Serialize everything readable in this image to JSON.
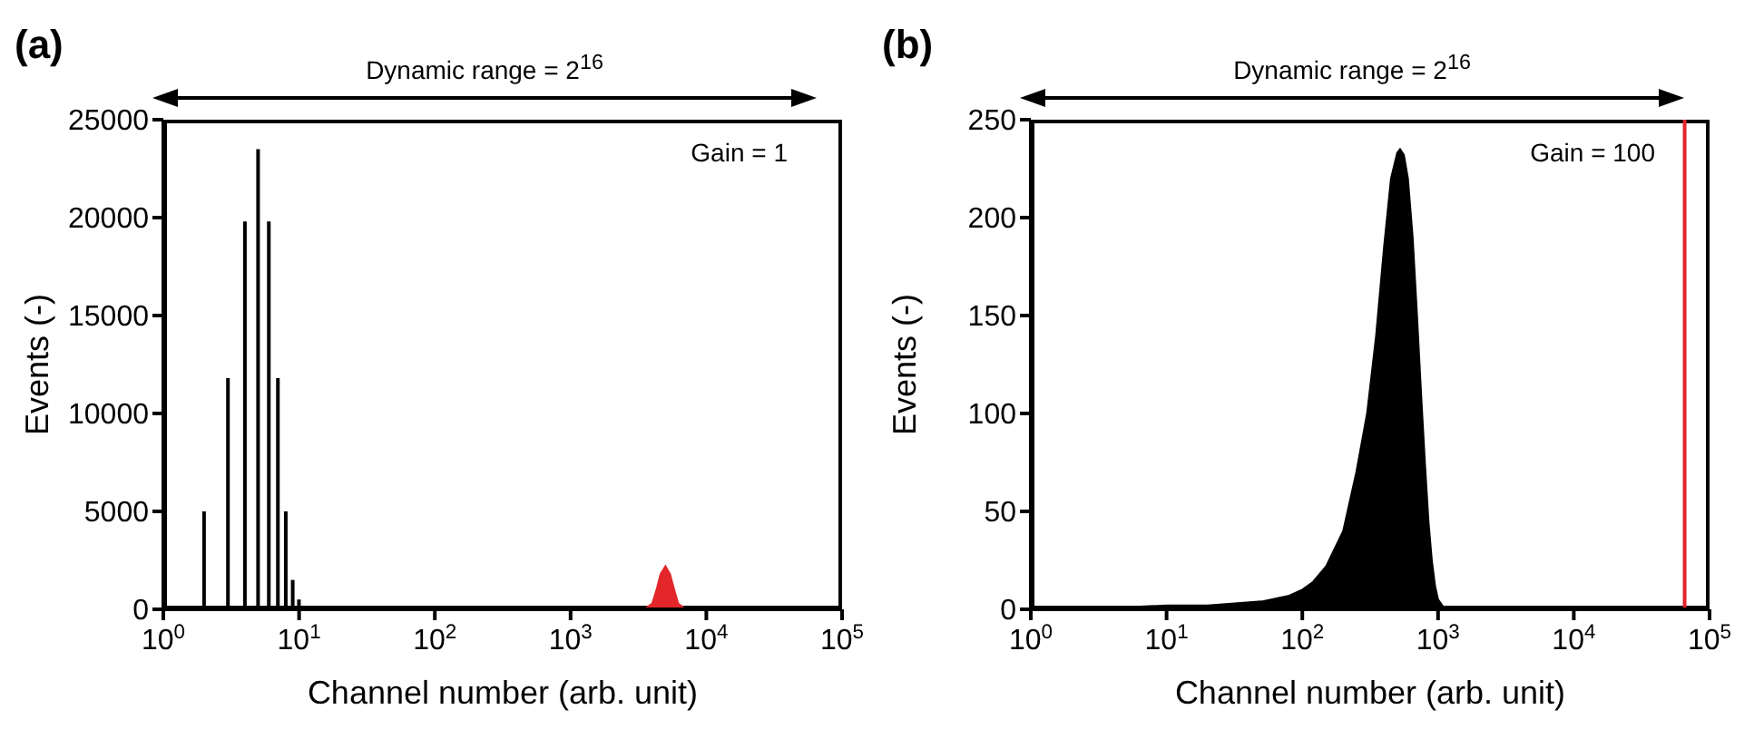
{
  "chart_data": [
    {
      "type": "bar",
      "title": "(a)",
      "xlabel": "Channel number (arb. unit)",
      "ylabel": "Events (-)",
      "annotations": [
        "Dynamic range = 2$^{16}$",
        "Gain = 1"
      ],
      "log": "x",
      "xlim": [
        1,
        100000
      ],
      "xticks": [
        {
          "value": 1,
          "label": "10$^{0}$"
        },
        {
          "value": 10,
          "label": "10$^{1}$"
        },
        {
          "value": 100,
          "label": "10$^{2}$"
        },
        {
          "value": 1000,
          "label": "10$^{3}$"
        },
        {
          "value": 10000,
          "label": "10$^{4}$"
        },
        {
          "value": 100000,
          "label": "10$^{5}$"
        }
      ],
      "ylim": [
        0,
        25000
      ],
      "yticks": [
        0,
        5000,
        10000,
        15000,
        20000,
        25000
      ],
      "series": [
        {
          "color": "#000000",
          "x": [
            2,
            3,
            4,
            5,
            6,
            7,
            8,
            9,
            10
          ],
          "values": [
            5000,
            11800,
            19800,
            23500,
            19800,
            11800,
            5000,
            1500,
            500
          ]
        },
        {
          "type": "area",
          "color": "#e3262a",
          "x": [
            3500,
            4000,
            4300,
            4600,
            5000,
            5400,
            5800,
            6200,
            7000
          ],
          "values": [
            0,
            300,
            1000,
            1800,
            2200,
            1800,
            1000,
            300,
            0
          ]
        }
      ]
    },
    {
      "type": "area",
      "title": "(b)",
      "xlabel": "Channel number (arb. unit)",
      "ylabel": "Events (-)",
      "annotations": [
        "Dynamic range = 2$^{16}$",
        "Gain = 100"
      ],
      "log": "x",
      "xlim": [
        1,
        100000
      ],
      "xticks": [
        {
          "value": 1,
          "label": "10$^{0}$"
        },
        {
          "value": 10,
          "label": "10$^{1}$"
        },
        {
          "value": 100,
          "label": "10$^{2}$"
        },
        {
          "value": 1000,
          "label": "10$^{3}$"
        },
        {
          "value": 10000,
          "label": "10$^{4}$"
        },
        {
          "value": 100000,
          "label": "10$^{5}$"
        }
      ],
      "ylim": [
        0,
        250
      ],
      "yticks": [
        0,
        50,
        100,
        150,
        200,
        250
      ],
      "ref_lines": [
        {
          "axis": "x",
          "value": 65536,
          "color": "#e3262a"
        }
      ],
      "series": [
        {
          "color": "#000000",
          "x": [
            2,
            5,
            10,
            20,
            50,
            80,
            100,
            120,
            150,
            200,
            250,
            300,
            350,
            400,
            450,
            500,
            525,
            560,
            600,
            650,
            700,
            750,
            800,
            850,
            900,
            950,
            1000,
            1100,
            2000,
            5000
          ],
          "values": [
            1,
            1,
            2,
            2,
            4,
            7,
            10,
            14,
            22,
            40,
            70,
            100,
            140,
            185,
            220,
            233,
            235,
            232,
            220,
            190,
            150,
            110,
            75,
            45,
            25,
            12,
            5,
            1,
            1,
            0
          ]
        }
      ]
    }
  ]
}
